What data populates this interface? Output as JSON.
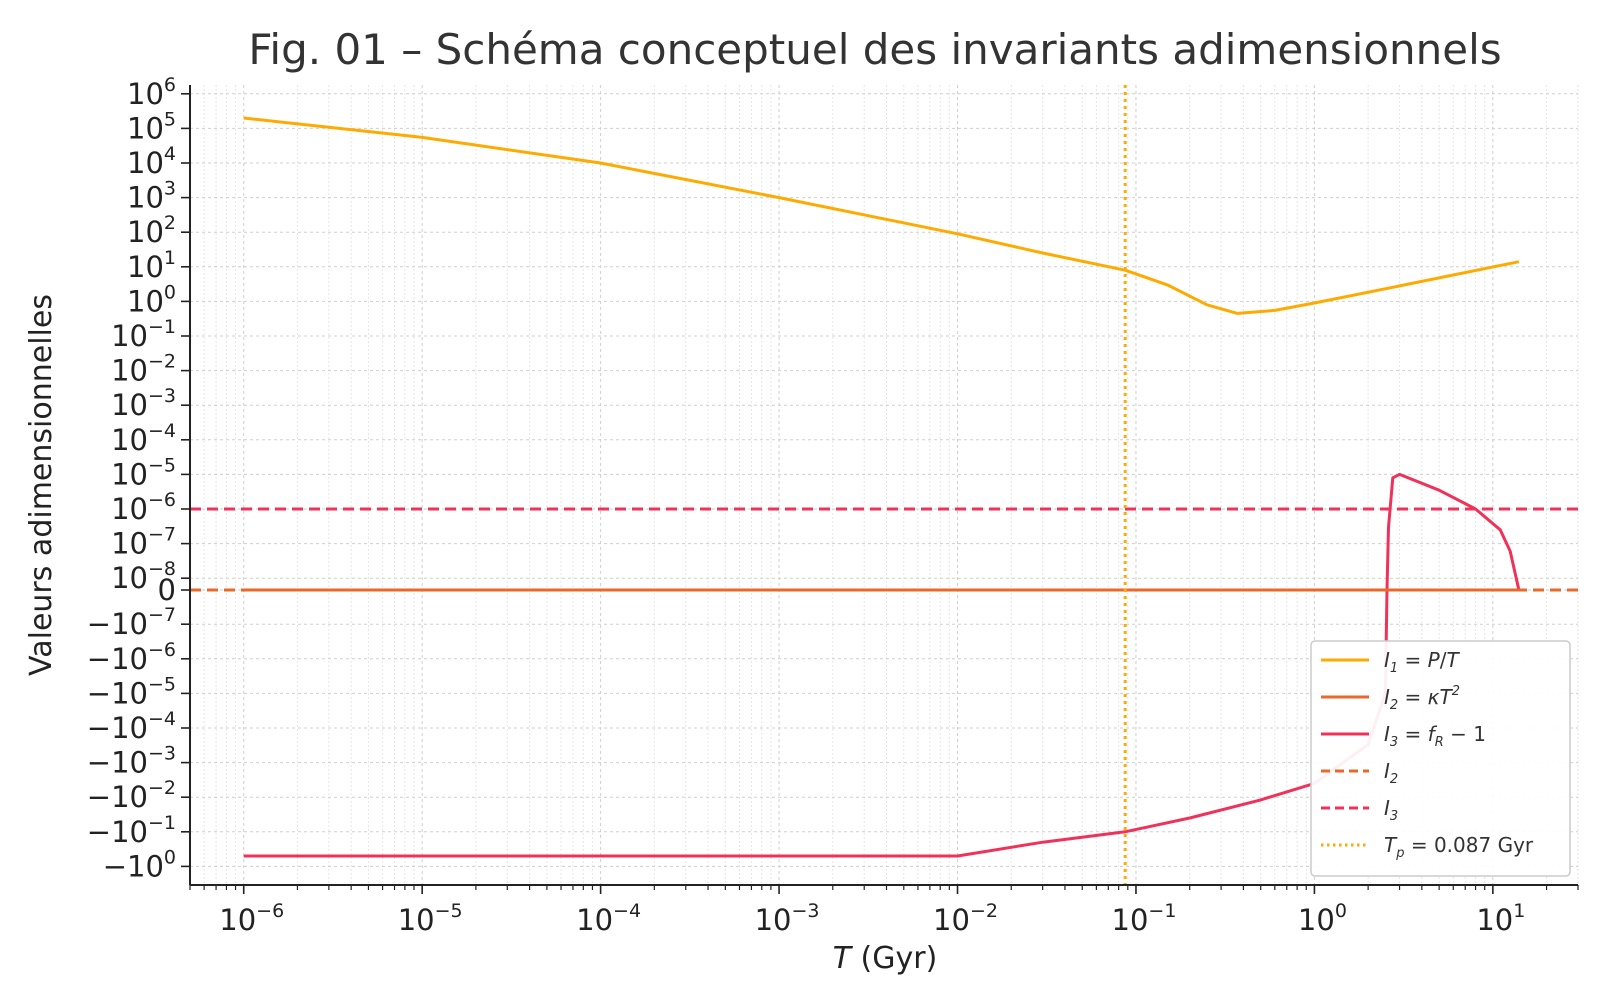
{
  "chart_data": {
    "type": "line",
    "title": "Fig. 01 – Schéma conceptuel des invariants adimensionnels",
    "xlabel": "T (Gyr)",
    "ylabel": "Valeurs adimensionnelles",
    "xscale": "log",
    "yscale": "symlog",
    "xlim": [
      5e-07,
      30
    ],
    "x_ticks": [
      {
        "base": "10",
        "exp": "−6"
      },
      {
        "base": "10",
        "exp": "−5"
      },
      {
        "base": "10",
        "exp": "−4"
      },
      {
        "base": "10",
        "exp": "−3"
      },
      {
        "base": "10",
        "exp": "−2"
      },
      {
        "base": "10",
        "exp": "−1"
      },
      {
        "base": "10",
        "exp": "0"
      },
      {
        "base": "10",
        "exp": "1"
      }
    ],
    "y_ticks": [
      {
        "base": "10",
        "exp": "6"
      },
      {
        "base": "10",
        "exp": "5"
      },
      {
        "base": "10",
        "exp": "4"
      },
      {
        "base": "10",
        "exp": "3"
      },
      {
        "base": "10",
        "exp": "2"
      },
      {
        "base": "10",
        "exp": "1"
      },
      {
        "base": "10",
        "exp": "0"
      },
      {
        "base": "10",
        "exp": "−1"
      },
      {
        "base": "10",
        "exp": "−2"
      },
      {
        "base": "10",
        "exp": "−3"
      },
      {
        "base": "10",
        "exp": "−4"
      },
      {
        "base": "10",
        "exp": "−5"
      },
      {
        "base": "10",
        "exp": "−6"
      },
      {
        "base": "10",
        "exp": "−7"
      },
      {
        "base": "10",
        "exp": "−8"
      },
      {
        "base": "0",
        "exp": ""
      },
      {
        "base": "−10",
        "exp": "−7"
      },
      {
        "base": "−10",
        "exp": "−6"
      },
      {
        "base": "−10",
        "exp": "−5"
      },
      {
        "base": "−10",
        "exp": "−4"
      },
      {
        "base": "−10",
        "exp": "−3"
      },
      {
        "base": "−10",
        "exp": "−2"
      },
      {
        "base": "−10",
        "exp": "−1"
      },
      {
        "base": "−10",
        "exp": "0"
      }
    ],
    "grid": true,
    "legend_position": "lower-right",
    "series": [
      {
        "name": "I1 = P/T",
        "style": "solid",
        "color": "#FFAA00",
        "points": [
          [
            1e-06,
            200000
          ],
          [
            1e-05,
            55000
          ],
          [
            0.0001,
            10000
          ],
          [
            0.001,
            1000
          ],
          [
            0.01,
            90
          ],
          [
            0.03,
            25
          ],
          [
            0.087,
            8
          ],
          [
            0.15,
            3
          ],
          [
            0.25,
            0.8
          ],
          [
            0.37,
            0.45
          ],
          [
            0.6,
            0.55
          ],
          [
            1.0,
            0.9
          ],
          [
            3.0,
            2.8
          ],
          [
            14.0,
            14.0
          ]
        ]
      },
      {
        "name": "I2 = κT²",
        "style": "solid",
        "color": "#E86A2A",
        "points": [
          [
            1e-06,
            0
          ],
          [
            14.0,
            0
          ]
        ]
      },
      {
        "name": "I3 = fR − 1",
        "style": "solid",
        "color": "#F0325A",
        "points": [
          [
            1e-06,
            -0.5
          ],
          [
            0.01,
            -0.5
          ],
          [
            0.03,
            -0.2
          ],
          [
            0.087,
            -0.1
          ],
          [
            0.2,
            -0.04
          ],
          [
            0.5,
            -0.012
          ],
          [
            1.0,
            -0.004
          ],
          [
            2.0,
            -0.0003
          ],
          [
            2.5,
            -1e-05
          ],
          [
            2.55,
            0
          ],
          [
            2.6,
            3e-07
          ],
          [
            2.75,
            8e-06
          ],
          [
            3.0,
            1e-05
          ],
          [
            5.0,
            3.5e-06
          ],
          [
            8.0,
            1e-06
          ],
          [
            11.0,
            2.5e-07
          ],
          [
            12.5,
            6e-08
          ],
          [
            14.0,
            0
          ]
        ]
      },
      {
        "name": "I2",
        "style": "dashed",
        "color": "#E86A2A",
        "constant": 0
      },
      {
        "name": "I3",
        "style": "dashed",
        "color": "#F0325A",
        "constant": 1e-06
      },
      {
        "name": "Tp = 0.087 Gyr",
        "style": "dotted",
        "color": "#FFAA00",
        "vertical_at": 0.087
      }
    ]
  }
}
